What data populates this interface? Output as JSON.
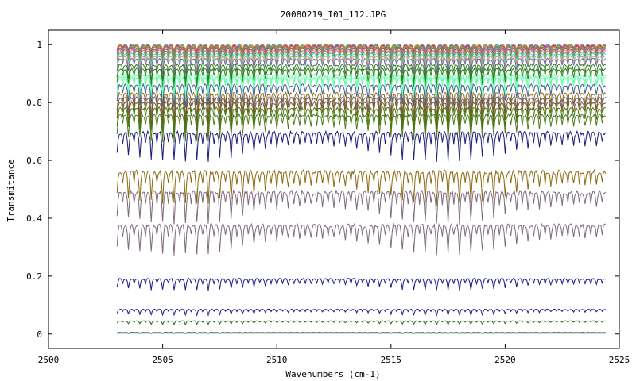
{
  "chart_data": {
    "type": "line",
    "title": "20080219_I01_112.JPG",
    "xlabel": "Wavenumbers (cm-1)",
    "ylabel": "Transmitance",
    "xlim": [
      2500,
      2525
    ],
    "ylim": [
      -0.05,
      1.05
    ],
    "x_ticks": [
      2500,
      2505,
      2510,
      2515,
      2520,
      2525
    ],
    "y_ticks": [
      0,
      0.2,
      0.4,
      0.6,
      0.8,
      1
    ],
    "x_tick_labels": [
      "2500",
      "2505",
      "2510",
      "2515",
      "2520",
      "2525"
    ],
    "y_tick_labels": [
      "0",
      "0.2",
      "0.4",
      "0.6",
      "0.8",
      "1"
    ],
    "grid": false,
    "legend": "none",
    "x_range_data": [
      2503.0,
      2524.4
    ],
    "line_period_cm1": 0.5,
    "series": [
      {
        "color": "#ff8800",
        "baseline": 1.0,
        "depth": 0.02
      },
      {
        "color": "#00aaff",
        "baseline": 0.998,
        "depth": 0.025
      },
      {
        "color": "#cc00cc",
        "baseline": 0.996,
        "depth": 0.025
      },
      {
        "color": "#88cc00",
        "baseline": 0.995,
        "depth": 0.03
      },
      {
        "color": "#ff4444",
        "baseline": 0.993,
        "depth": 0.03
      },
      {
        "color": "#00bb88",
        "baseline": 0.99,
        "depth": 0.03
      },
      {
        "color": "#8888ff",
        "baseline": 0.988,
        "depth": 0.035
      },
      {
        "color": "#aa6600",
        "baseline": 0.985,
        "depth": 0.035
      },
      {
        "color": "#ff66cc",
        "baseline": 0.98,
        "depth": 0.04
      },
      {
        "color": "#33aa33",
        "baseline": 0.975,
        "depth": 0.04
      },
      {
        "color": "#66cccc",
        "baseline": 0.968,
        "depth": 0.045
      },
      {
        "color": "#cc9966",
        "baseline": 0.96,
        "depth": 0.05
      },
      {
        "color": "#6666aa",
        "baseline": 0.95,
        "depth": 0.055
      },
      {
        "color": "#2e7d1e",
        "baseline": 0.93,
        "depth": 0.06
      },
      {
        "color": "#2e7d1e",
        "baseline": 0.915,
        "depth": 0.065
      },
      {
        "color": "#66ffaa",
        "baseline": 0.895,
        "depth": 0.07
      },
      {
        "color": "#66ffaa",
        "baseline": 0.885,
        "depth": 0.07
      },
      {
        "color": "#3d5f8a",
        "baseline": 0.86,
        "depth": 0.075
      },
      {
        "color": "#8a6a10",
        "baseline": 0.83,
        "depth": 0.08
      },
      {
        "color": "#6f5f7f",
        "baseline": 0.815,
        "depth": 0.08
      },
      {
        "color": "#7a5a14",
        "baseline": 0.8,
        "depth": 0.085
      },
      {
        "color": "#3f7a12",
        "baseline": 0.78,
        "depth": 0.085
      },
      {
        "color": "#4f7a1a",
        "baseline": 0.755,
        "depth": 0.09
      },
      {
        "color": "#1a1a7a",
        "baseline": 0.695,
        "depth": 0.1
      },
      {
        "color": "#8a6a10",
        "baseline": 0.56,
        "depth": 0.11
      },
      {
        "color": "#7d6a7d",
        "baseline": 0.49,
        "depth": 0.11
      },
      {
        "color": "#7d6a7d",
        "baseline": 0.375,
        "depth": 0.1
      },
      {
        "color": "#1a1a8a",
        "baseline": 0.19,
        "depth": 0.04
      },
      {
        "color": "#1a1a8a",
        "baseline": 0.085,
        "depth": 0.02
      },
      {
        "color": "#2e6e1e",
        "baseline": 0.045,
        "depth": 0.012
      },
      {
        "color": "#1a1a1a",
        "baseline": 0.005,
        "depth": 0.002
      },
      {
        "color": "#33aa88",
        "baseline": 0.003,
        "depth": 0.002
      }
    ]
  }
}
